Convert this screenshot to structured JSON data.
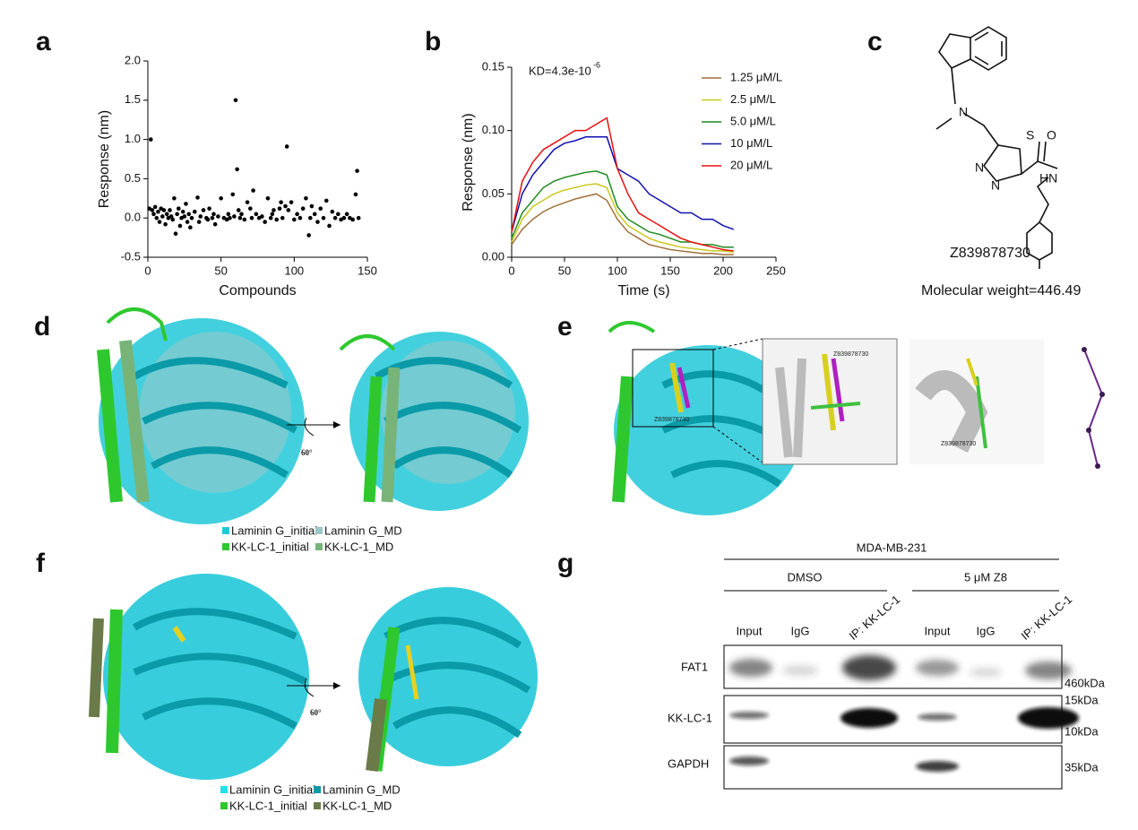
{
  "panel_labels": [
    "a",
    "b",
    "c",
    "d",
    "e",
    "f",
    "g"
  ],
  "chart_data": [
    {
      "type": "scatter",
      "xlabel": "Compounds",
      "ylabel": "Response (nm)",
      "color": "#000000",
      "xlim": [
        0,
        150
      ],
      "xticks": [
        0,
        50,
        100,
        150
      ],
      "ylim": [
        -0.5,
        2.0
      ],
      "yticks": [
        -0.5,
        {
          "value": 0,
          "label": "0.0"
        },
        0.5,
        {
          "value": 1,
          "label": "1.0"
        },
        1.5,
        {
          "value": 2,
          "label": "2.0"
        }
      ],
      "x": [
        1,
        2,
        3,
        4,
        5,
        6,
        7,
        8,
        9,
        10,
        11,
        12,
        13,
        14,
        15,
        16,
        17,
        18,
        19,
        20,
        21,
        22,
        23,
        24,
        25,
        26,
        27,
        28,
        29,
        30,
        32,
        34,
        35,
        36,
        38,
        40,
        41,
        42,
        44,
        45,
        46,
        48,
        50,
        52,
        54,
        55,
        56,
        58,
        59,
        60,
        61,
        62,
        63,
        64,
        66,
        68,
        70,
        71,
        72,
        74,
        76,
        78,
        80,
        82,
        84,
        85,
        86,
        88,
        90,
        91,
        92,
        94,
        95,
        96,
        98,
        100,
        102,
        104,
        106,
        108,
        110,
        111,
        112,
        114,
        116,
        118,
        120,
        122,
        124,
        126,
        128,
        130,
        132,
        134,
        136,
        138,
        140,
        142,
        143,
        144
      ],
      "values": [
        0.12,
        1.0,
        0.1,
        0.05,
        0.14,
        0.0,
        0.08,
        -0.05,
        0.12,
        0.02,
        0.1,
        -0.08,
        0.05,
        0.0,
        0.1,
        0.02,
        -0.02,
        0.25,
        -0.2,
        0.05,
        0.12,
        -0.1,
        0.0,
        0.08,
        0.02,
        0.18,
        -0.05,
        0.05,
        -0.12,
        0.0,
        0.08,
        0.26,
        -0.05,
        0.02,
        0.1,
        0.0,
        -0.02,
        0.12,
        0.0,
        0.05,
        -0.08,
        0.02,
        0.25,
        0.0,
        -0.02,
        0.05,
        0.0,
        0.3,
        0.02,
        1.5,
        0.62,
        0.1,
        0.0,
        0.05,
        -0.02,
        0.2,
        0.12,
        0.0,
        0.35,
        0.05,
        0.0,
        0.02,
        -0.05,
        0.25,
        0.0,
        0.05,
        0.1,
        -0.02,
        0.12,
        0.2,
        0.0,
        0.15,
        0.91,
        0.1,
        0.2,
        -0.02,
        0.05,
        0.0,
        0.12,
        0.25,
        -0.22,
        0.0,
        0.15,
        0.05,
        -0.05,
        0.12,
        0.0,
        0.22,
        -0.1,
        0.08,
        0.0,
        0.05,
        -0.02,
        0.0,
        0.05,
        0.0,
        -0.02,
        0.3,
        0.6,
        0.0
      ]
    },
    {
      "type": "line",
      "xlabel": "Time (s)",
      "ylabel": "Response (nm)",
      "annotation": "KD=4.3e-10",
      "annotation_exponent": "-6",
      "xlim": [
        0,
        250
      ],
      "xticks": [
        0,
        50,
        100,
        150,
        200,
        250
      ],
      "ylim": [
        0,
        0.15
      ],
      "yticks": [
        {
          "value": 0,
          "label": "0.00"
        },
        0.05,
        {
          "value": 0.1,
          "label": "0.10"
        },
        0.15
      ],
      "x": [
        0,
        10,
        20,
        30,
        40,
        50,
        60,
        70,
        80,
        90,
        100,
        110,
        120,
        130,
        140,
        150,
        160,
        170,
        180,
        190,
        200,
        210
      ],
      "series": [
        {
          "name": "1.25 μM/L",
          "color": "#a0723a",
          "values": [
            0.01,
            0.022,
            0.03,
            0.036,
            0.04,
            0.043,
            0.046,
            0.048,
            0.05,
            0.045,
            0.03,
            0.02,
            0.015,
            0.01,
            0.008,
            0.006,
            0.005,
            0.004,
            0.003,
            0.003,
            0.002,
            0.002
          ]
        },
        {
          "name": "2.5 μM/L",
          "color": "#c8c81e",
          "values": [
            0.012,
            0.03,
            0.04,
            0.045,
            0.05,
            0.053,
            0.055,
            0.057,
            0.058,
            0.055,
            0.035,
            0.025,
            0.02,
            0.015,
            0.012,
            0.01,
            0.008,
            0.007,
            0.006,
            0.005,
            0.005,
            0.004
          ]
        },
        {
          "name": "5.0 μM/L",
          "color": "#1f8a1f",
          "values": [
            0.015,
            0.035,
            0.045,
            0.055,
            0.06,
            0.063,
            0.065,
            0.067,
            0.068,
            0.065,
            0.04,
            0.03,
            0.025,
            0.02,
            0.018,
            0.015,
            0.012,
            0.012,
            0.01,
            0.01,
            0.008,
            0.008
          ]
        },
        {
          "name": "10 μM/L",
          "color": "#1010b0",
          "values": [
            0.02,
            0.05,
            0.065,
            0.075,
            0.085,
            0.09,
            0.092,
            0.095,
            0.095,
            0.095,
            0.07,
            0.065,
            0.06,
            0.05,
            0.045,
            0.04,
            0.035,
            0.035,
            0.03,
            0.03,
            0.025,
            0.022
          ]
        },
        {
          "name": "20 μM/L",
          "color": "#e81010",
          "values": [
            0.02,
            0.06,
            0.075,
            0.085,
            0.09,
            0.095,
            0.1,
            0.1,
            0.105,
            0.11,
            0.07,
            0.05,
            0.035,
            0.03,
            0.025,
            0.02,
            0.015,
            0.012,
            0.01,
            0.008,
            0.006,
            0.005
          ]
        }
      ]
    }
  ],
  "structure": {
    "atoms": [
      "N",
      "S",
      "N",
      "N",
      "O",
      "HN"
    ],
    "compound": "Z839878730",
    "molecular_weight": "Molecular weight=446.49"
  },
  "docking_d": {
    "rotation": "60°",
    "legend": [
      "Laminin G_initial",
      "Laminin G_MD",
      "KK-LC-1_initial",
      "KK-LC-1_MD"
    ]
  },
  "docking_e": {
    "labels": [
      "Z839878730",
      "Z839878730",
      "Z839878730"
    ]
  },
  "docking_f": {
    "rotation": "60°",
    "legend": [
      "Laminin G_initial",
      "Laminin G_MD",
      "KK-LC-1_initial",
      "KK-LC-1_MD"
    ]
  },
  "western_blot": {
    "cell_line": "MDA-MB-231",
    "groups": [
      "DMSO",
      "5 μM Z8"
    ],
    "lanes": [
      "Input",
      "IgG",
      "IP: KK-LC-1",
      "Input",
      "IgG",
      "IP: KK-LC-1"
    ],
    "rows": [
      "FAT1",
      "KK-LC-1",
      "GAPDH"
    ],
    "markers": [
      "460kDa",
      "15kDa",
      "10kDa",
      "35kDa"
    ]
  }
}
